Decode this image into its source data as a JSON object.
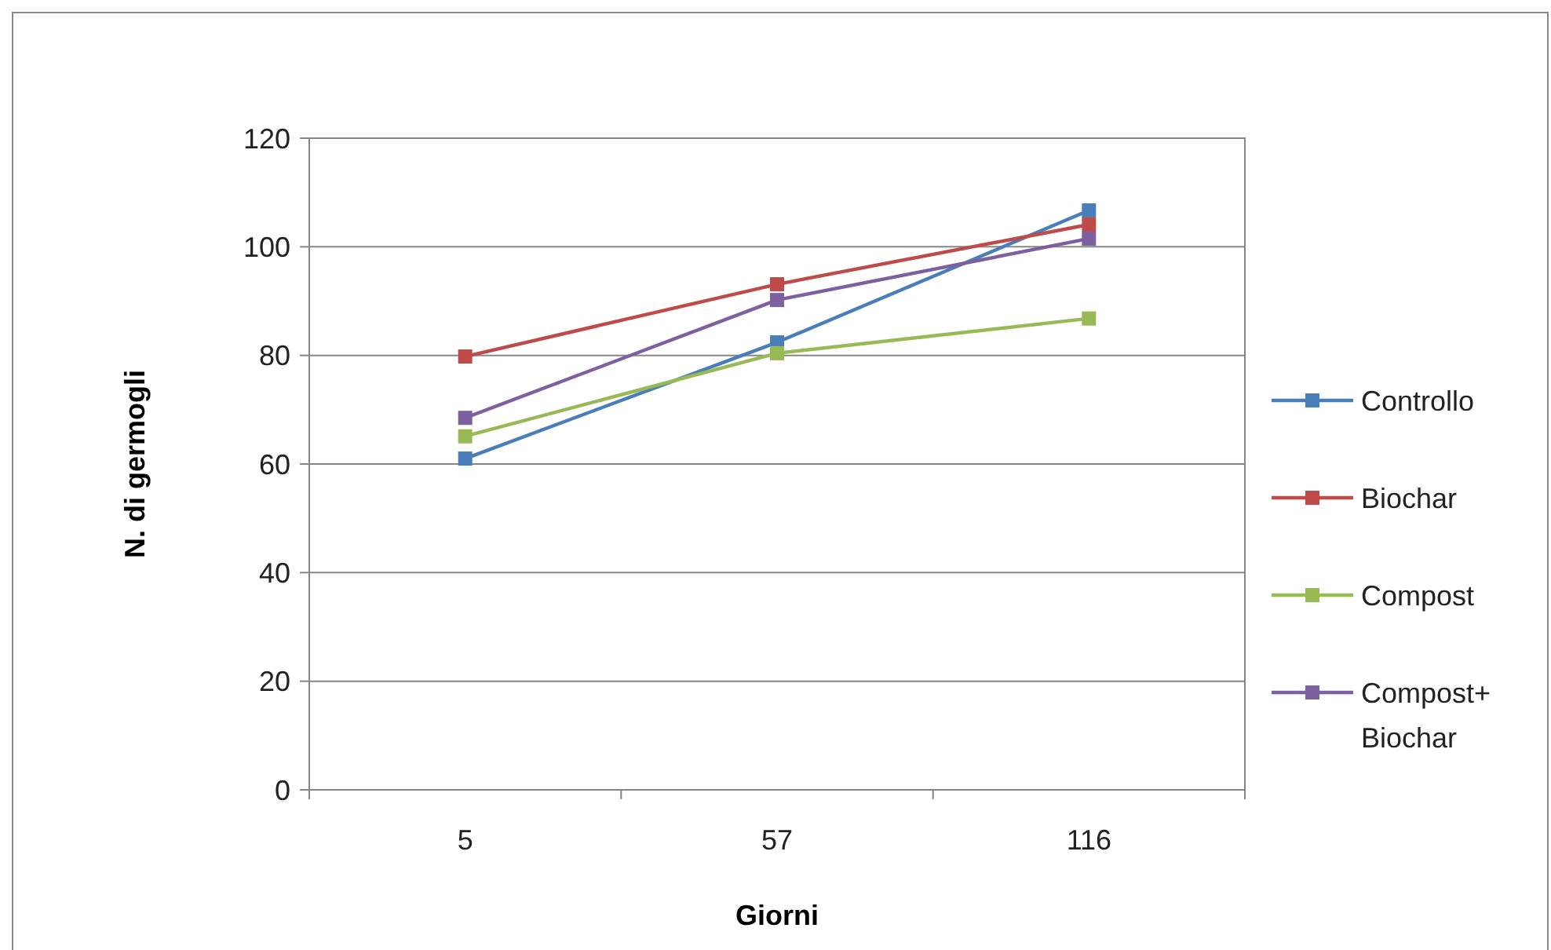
{
  "chart_data": {
    "type": "line",
    "xlabel": "Giorni",
    "ylabel": "N. di germogli",
    "categories": [
      "5",
      "57",
      "116"
    ],
    "ylim": [
      0,
      120
    ],
    "yticks": [
      0,
      20,
      40,
      60,
      80,
      100,
      120
    ],
    "grid": "y",
    "legend": "right",
    "marker": "square",
    "line_style": "solid",
    "series": [
      {
        "name": "Controllo",
        "color": "#4a7ebb",
        "values": [
          61,
          82.4,
          106.7
        ]
      },
      {
        "name": "Biochar",
        "color": "#be4b48",
        "values": [
          79.8,
          93.1,
          104.1
        ]
      },
      {
        "name": "Compost",
        "color": "#98b954",
        "values": [
          65.1,
          80.4,
          86.8
        ]
      },
      {
        "name": "Compost+ Biochar",
        "color": "#7d60a0",
        "values": [
          68.5,
          90.2,
          101.5
        ]
      }
    ]
  }
}
